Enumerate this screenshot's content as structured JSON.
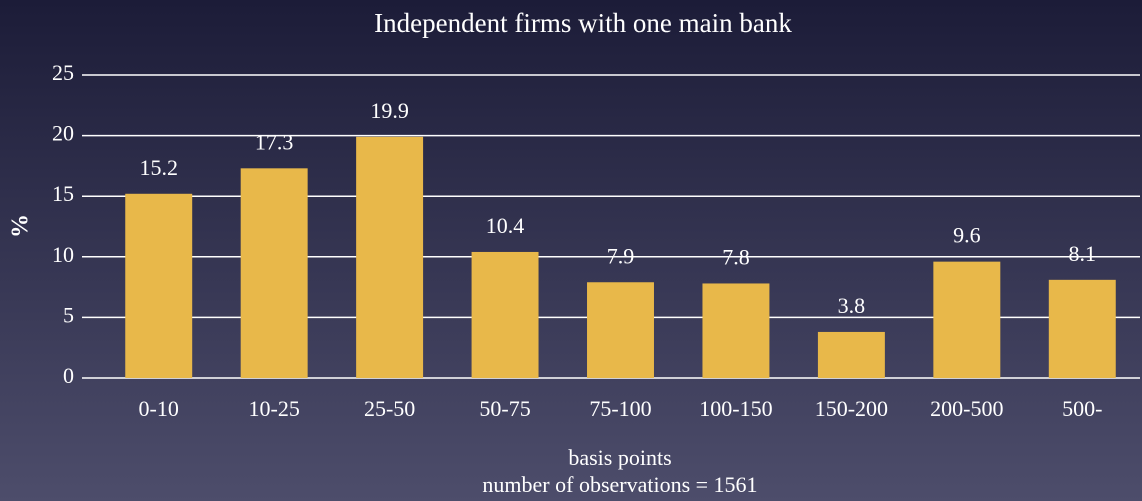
{
  "chart_data": {
    "type": "bar",
    "title": "Independent firms with one main bank",
    "categories": [
      "0-10",
      "10-25",
      "25-50",
      "50-75",
      "75-100",
      "100-150",
      "150-200",
      "200-500",
      "500-"
    ],
    "values": [
      15.2,
      17.3,
      19.9,
      10.4,
      7.9,
      7.8,
      3.8,
      9.6,
      8.1
    ],
    "color": "#e8b84a",
    "ylabel": "%",
    "xlabel": "basis points",
    "note": "number of observations = 1561",
    "ylim": [
      0,
      25
    ],
    "yticks": [
      0,
      5,
      10,
      15,
      20,
      25
    ],
    "grid": true
  }
}
